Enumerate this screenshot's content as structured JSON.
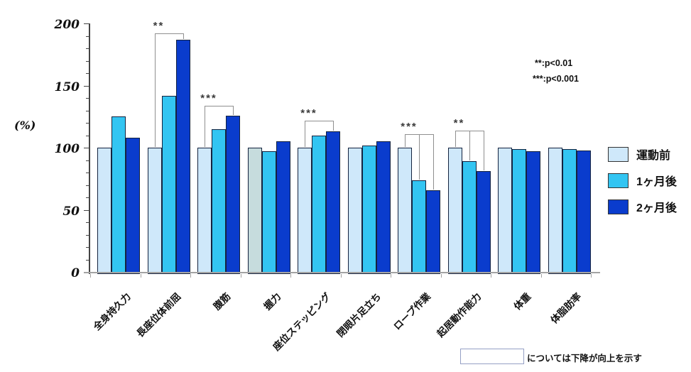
{
  "chart_data": {
    "type": "bar",
    "title": "",
    "ylabel": "(%)",
    "ylim": [
      0,
      200
    ],
    "yticks": [
      0,
      50,
      100,
      150,
      200
    ],
    "minor_tick_step": 10,
    "grid": false,
    "legend_position": "right",
    "categories": [
      "全身持久力",
      "長座位体前屈",
      "腹筋",
      "握力",
      "座位ステッピング",
      "閉眼片足立ち",
      "ロープ作業",
      "起居動作能力",
      "体重",
      "体脂肪率"
    ],
    "series": [
      {
        "name": "運動前",
        "color": "#cfe8fa",
        "values": [
          100,
          100,
          100,
          100,
          100,
          100,
          100,
          100,
          100,
          100
        ]
      },
      {
        "name": "1ヶ月後",
        "color": "#33c5f2",
        "values": [
          125,
          142,
          115,
          97,
          110,
          102,
          74,
          89,
          99,
          99
        ]
      },
      {
        "name": "2ヶ月後",
        "color": "#0a3ccd",
        "values": [
          108,
          187,
          126,
          105,
          113,
          105,
          66,
          81,
          97,
          98
        ]
      }
    ],
    "special_bars": [
      {
        "category_index": 3,
        "series_index": 0,
        "color": "#c6dcdd"
      }
    ],
    "significance": [
      {
        "category_index": 1,
        "stars": "**",
        "top_value": 192,
        "targets": [
          0,
          2
        ]
      },
      {
        "category_index": 2,
        "stars": "***",
        "top_value": 134,
        "targets": [
          0,
          2
        ]
      },
      {
        "category_index": 4,
        "stars": "***",
        "top_value": 122,
        "targets": [
          0,
          2
        ]
      },
      {
        "category_index": 6,
        "stars": "***",
        "top_value": 111,
        "targets": [
          0,
          1,
          2
        ]
      },
      {
        "category_index": 7,
        "stars": "**",
        "top_value": 114,
        "targets": [
          0,
          1,
          2
        ]
      }
    ]
  },
  "significance_key": {
    "line1": "**:p<0.01",
    "line2": "***:p<0.001"
  },
  "footnote": {
    "box_label": "",
    "text": "については下降が向上を示す"
  }
}
